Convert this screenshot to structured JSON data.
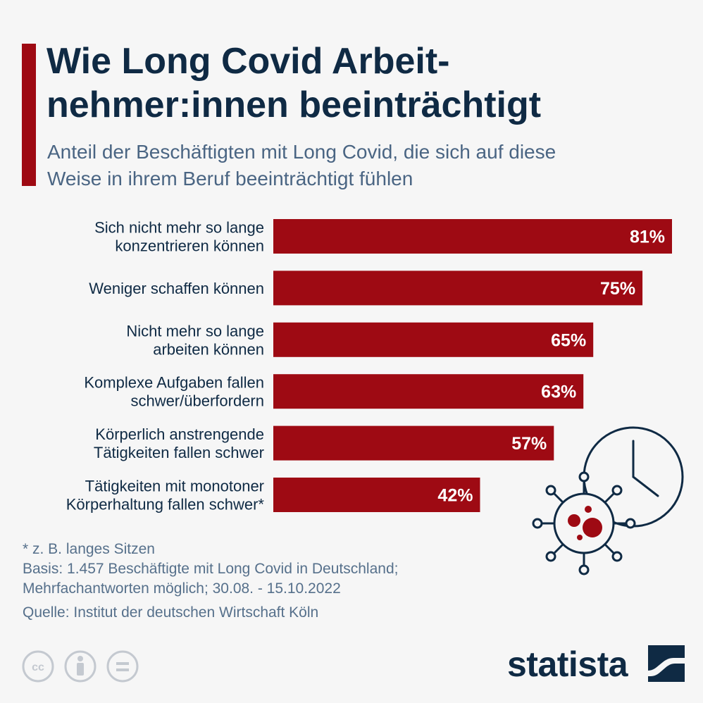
{
  "header": {
    "title_line1": "Wie Long Covid Arbeit-",
    "title_line2": "nehmer:innen beeinträchtigt",
    "subtitle_line1": "Anteil der Beschäftigten mit Long Covid, die sich auf diese",
    "subtitle_line2": "Weise in ihrem Beruf beeinträchtigt fühlen"
  },
  "chart_data": {
    "type": "bar",
    "orientation": "horizontal",
    "categories": [
      [
        "Sich nicht mehr so lange",
        "konzentrieren können"
      ],
      [
        "Weniger schaffen können"
      ],
      [
        "Nicht mehr so lange",
        "arbeiten können"
      ],
      [
        "Komplexe Aufgaben fallen",
        "schwer/überfordern"
      ],
      [
        "Körperlich anstrengende",
        "Tätigkeiten fallen schwer"
      ],
      [
        "Tätigkeiten mit monotoner",
        "Körperhaltung fallen schwer*"
      ]
    ],
    "values": [
      81,
      75,
      65,
      63,
      57,
      42
    ],
    "value_labels": [
      "81%",
      "75%",
      "65%",
      "63%",
      "57%",
      "42%"
    ],
    "unit": "%",
    "xlim": [
      0,
      81
    ],
    "grid": false,
    "legend": "none",
    "bar_color": "#9e0a13"
  },
  "footnotes": {
    "note": "* z. B. langes Sitzen",
    "basis_line1": "Basis: 1.457 Beschäftigte mit Long Covid in Deutschland;",
    "basis_line2": "Mehrfachantworten möglich; 30.08. - 15.10.2022",
    "source": "Quelle: Institut der deutschen Wirtschaft Köln"
  },
  "branding": {
    "logo_text": "statista",
    "license_icons": [
      "cc-icon",
      "by-person-icon",
      "nd-equals-icon"
    ]
  },
  "colors": {
    "accent": "#9e0a13",
    "title": "#0f2a44",
    "subtitle": "#4a6583",
    "background": "#f6f6f6"
  }
}
